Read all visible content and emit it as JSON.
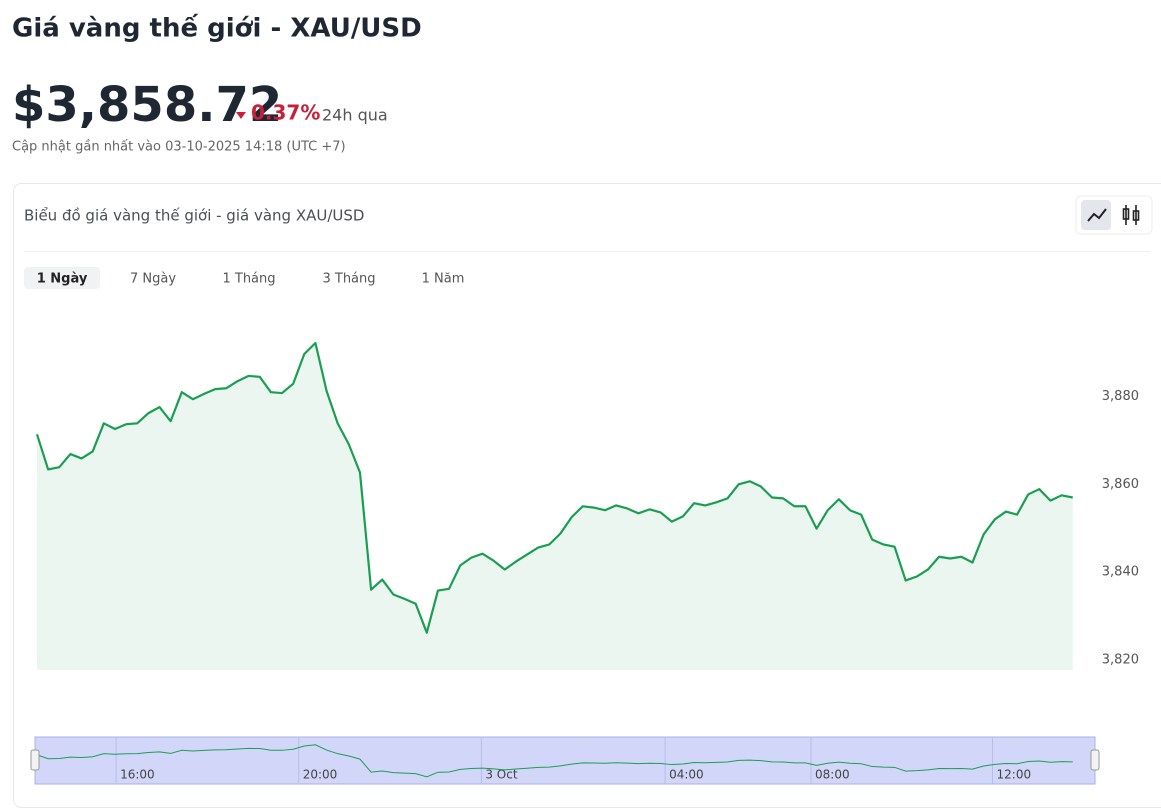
{
  "header": {
    "title": "Giá vàng thế giới - XAU/USD",
    "price": "$3,858.72",
    "change": "0.37%",
    "period": "24h qua",
    "updated": "Cập nhật gần nhất vào 03-10-2025 14:18 (UTC +7)"
  },
  "card": {
    "title": "Biểu đồ giá vàng thế giới - giá vàng XAU/USD",
    "tabs": [
      "1 Ngày",
      "7 Ngày",
      "1 Tháng",
      "3 Tháng",
      "1 Năm"
    ],
    "active_tab": 0
  },
  "chart_data": {
    "type": "line",
    "color": "#1a9e52",
    "fill": "#eaf6ef",
    "values": [
      3871.4,
      3863.4,
      3863.9,
      3866.9,
      3865.9,
      3867.5,
      3873.9,
      3872.6,
      3873.7,
      3873.9,
      3876.2,
      3877.6,
      3874.4,
      3881.0,
      3879.4,
      3880.6,
      3881.7,
      3881.9,
      3883.5,
      3884.7,
      3884.5,
      3881.0,
      3880.8,
      3882.9,
      3889.7,
      3892.2,
      3881.3,
      3873.9,
      3869.1,
      3862.7,
      3836.0,
      3838.3,
      3834.9,
      3833.9,
      3832.8,
      3826.2,
      3835.8,
      3836.2,
      3841.5,
      3843.3,
      3844.2,
      3842.6,
      3840.6,
      3842.4,
      3844.0,
      3845.6,
      3846.3,
      3848.8,
      3852.5,
      3855.0,
      3854.7,
      3854.1,
      3855.2,
      3854.5,
      3853.4,
      3854.3,
      3853.6,
      3851.5,
      3852.7,
      3855.7,
      3855.2,
      3855.9,
      3856.8,
      3860.0,
      3860.7,
      3859.5,
      3857.0,
      3856.8,
      3855.0,
      3855.0,
      3849.9,
      3854.1,
      3856.6,
      3854.1,
      3853.1,
      3847.4,
      3846.3,
      3845.8,
      3838.1,
      3839.0,
      3840.6,
      3843.5,
      3843.1,
      3843.5,
      3842.2,
      3848.6,
      3852.0,
      3853.8,
      3853.1,
      3857.7,
      3858.9,
      3856.3,
      3857.5,
      3857.0
    ],
    "ylim": [
      3817.7,
      3902
    ],
    "yticks": [
      {
        "value": 3820,
        "label": "3,820"
      },
      {
        "value": 3840,
        "label": "3,840"
      },
      {
        "value": 3860,
        "label": "3,860"
      },
      {
        "value": 3880,
        "label": "3,880"
      }
    ],
    "xlim": [
      0,
      95
    ],
    "xticks": [
      {
        "value": 7.1,
        "label": "16:00"
      },
      {
        "value": 23.5,
        "label": "20:00"
      },
      {
        "value": 39.9,
        "label": "3 Oct"
      },
      {
        "value": 56.4,
        "label": "04:00"
      },
      {
        "value": 69.5,
        "label": "08:00"
      },
      {
        "value": 85.8,
        "label": "12:00"
      }
    ],
    "grid": false
  }
}
